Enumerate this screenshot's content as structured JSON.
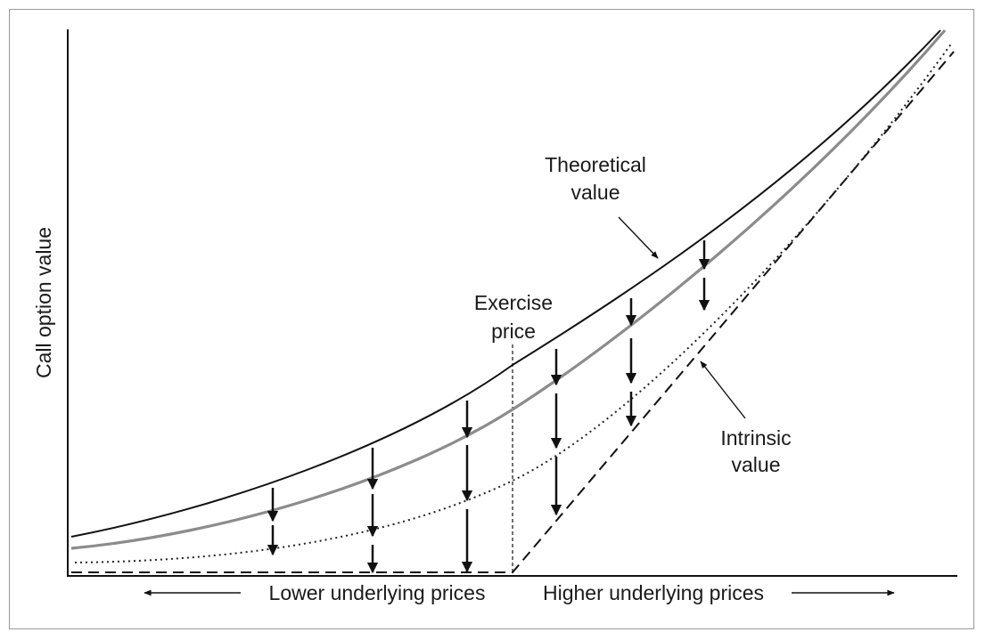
{
  "diagram": {
    "y_axis_label": "Call option value",
    "labels": {
      "theoretical_line1": "Theoretical",
      "theoretical_line2": "value",
      "exercise_line1": "Exercise",
      "exercise_line2": "price",
      "intrinsic_line1": "Intrinsic",
      "intrinsic_line2": "value",
      "lower_prices": "Lower underlying prices",
      "higher_prices": "Higher underlying prices"
    },
    "colors": {
      "theoretical_curve": "#111111",
      "middle_curve": "#8c8c8c",
      "lower_curve": "#222222",
      "intrinsic_line": "#111111",
      "arrows": "#111111",
      "frame": "#9a9a9a"
    }
  }
}
